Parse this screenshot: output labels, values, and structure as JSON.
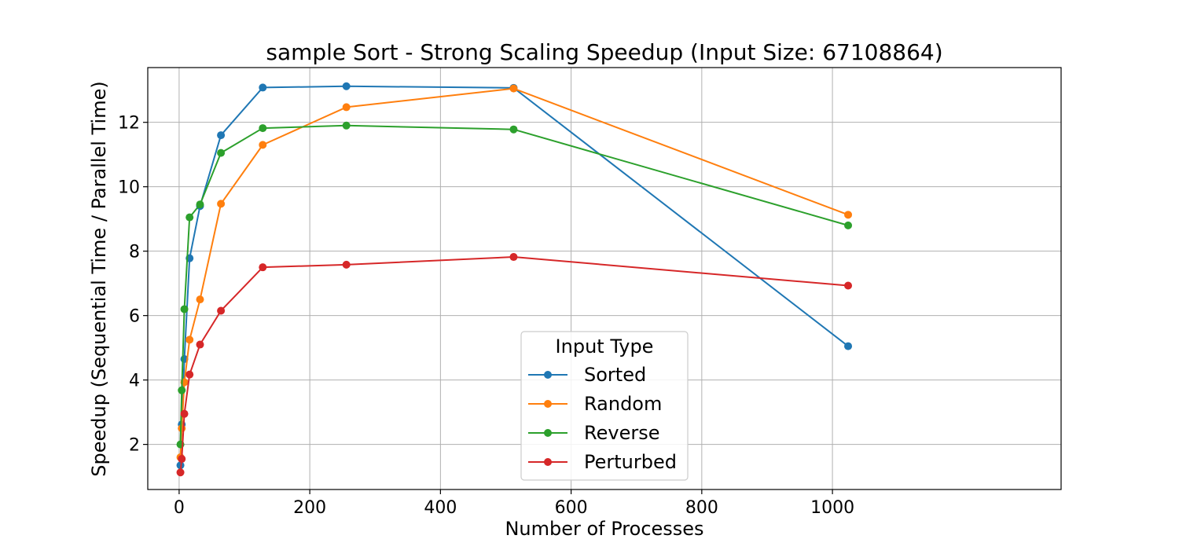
{
  "chart_data": {
    "type": "line",
    "title": "sample Sort - Strong Scaling Speedup (Input Size: 67108864)",
    "xlabel": "Number of Processes",
    "ylabel": "Speedup (Sequential Time / Parallel Time)",
    "xlim": [
      -48,
      1350
    ],
    "ylim": [
      0.6,
      13.7
    ],
    "xticks": [
      0,
      200,
      400,
      600,
      800,
      1000
    ],
    "yticks": [
      2,
      4,
      6,
      8,
      10,
      12
    ],
    "grid": true,
    "legend": {
      "title": "Input Type",
      "placement": "lower-center"
    },
    "x": [
      2,
      4,
      8,
      16,
      32,
      64,
      128,
      256,
      512,
      1024
    ],
    "series": [
      {
        "name": "Sorted",
        "color": "#1f77b4",
        "values": [
          1.35,
          2.62,
          4.65,
          7.78,
          9.4,
          11.6,
          13.08,
          13.12,
          13.07,
          5.05
        ]
      },
      {
        "name": "Random",
        "color": "#ff7f0e",
        "values": [
          1.6,
          2.5,
          3.93,
          5.25,
          6.5,
          9.47,
          11.3,
          12.47,
          13.05,
          9.13
        ]
      },
      {
        "name": "Reverse",
        "color": "#2ca02c",
        "values": [
          2.0,
          3.68,
          6.2,
          9.05,
          9.45,
          11.05,
          11.82,
          11.9,
          11.78,
          8.8
        ]
      },
      {
        "name": "Perturbed",
        "color": "#d62728",
        "values": [
          1.13,
          1.55,
          2.95,
          4.17,
          5.1,
          6.15,
          7.5,
          7.58,
          7.82,
          6.93
        ]
      }
    ]
  }
}
